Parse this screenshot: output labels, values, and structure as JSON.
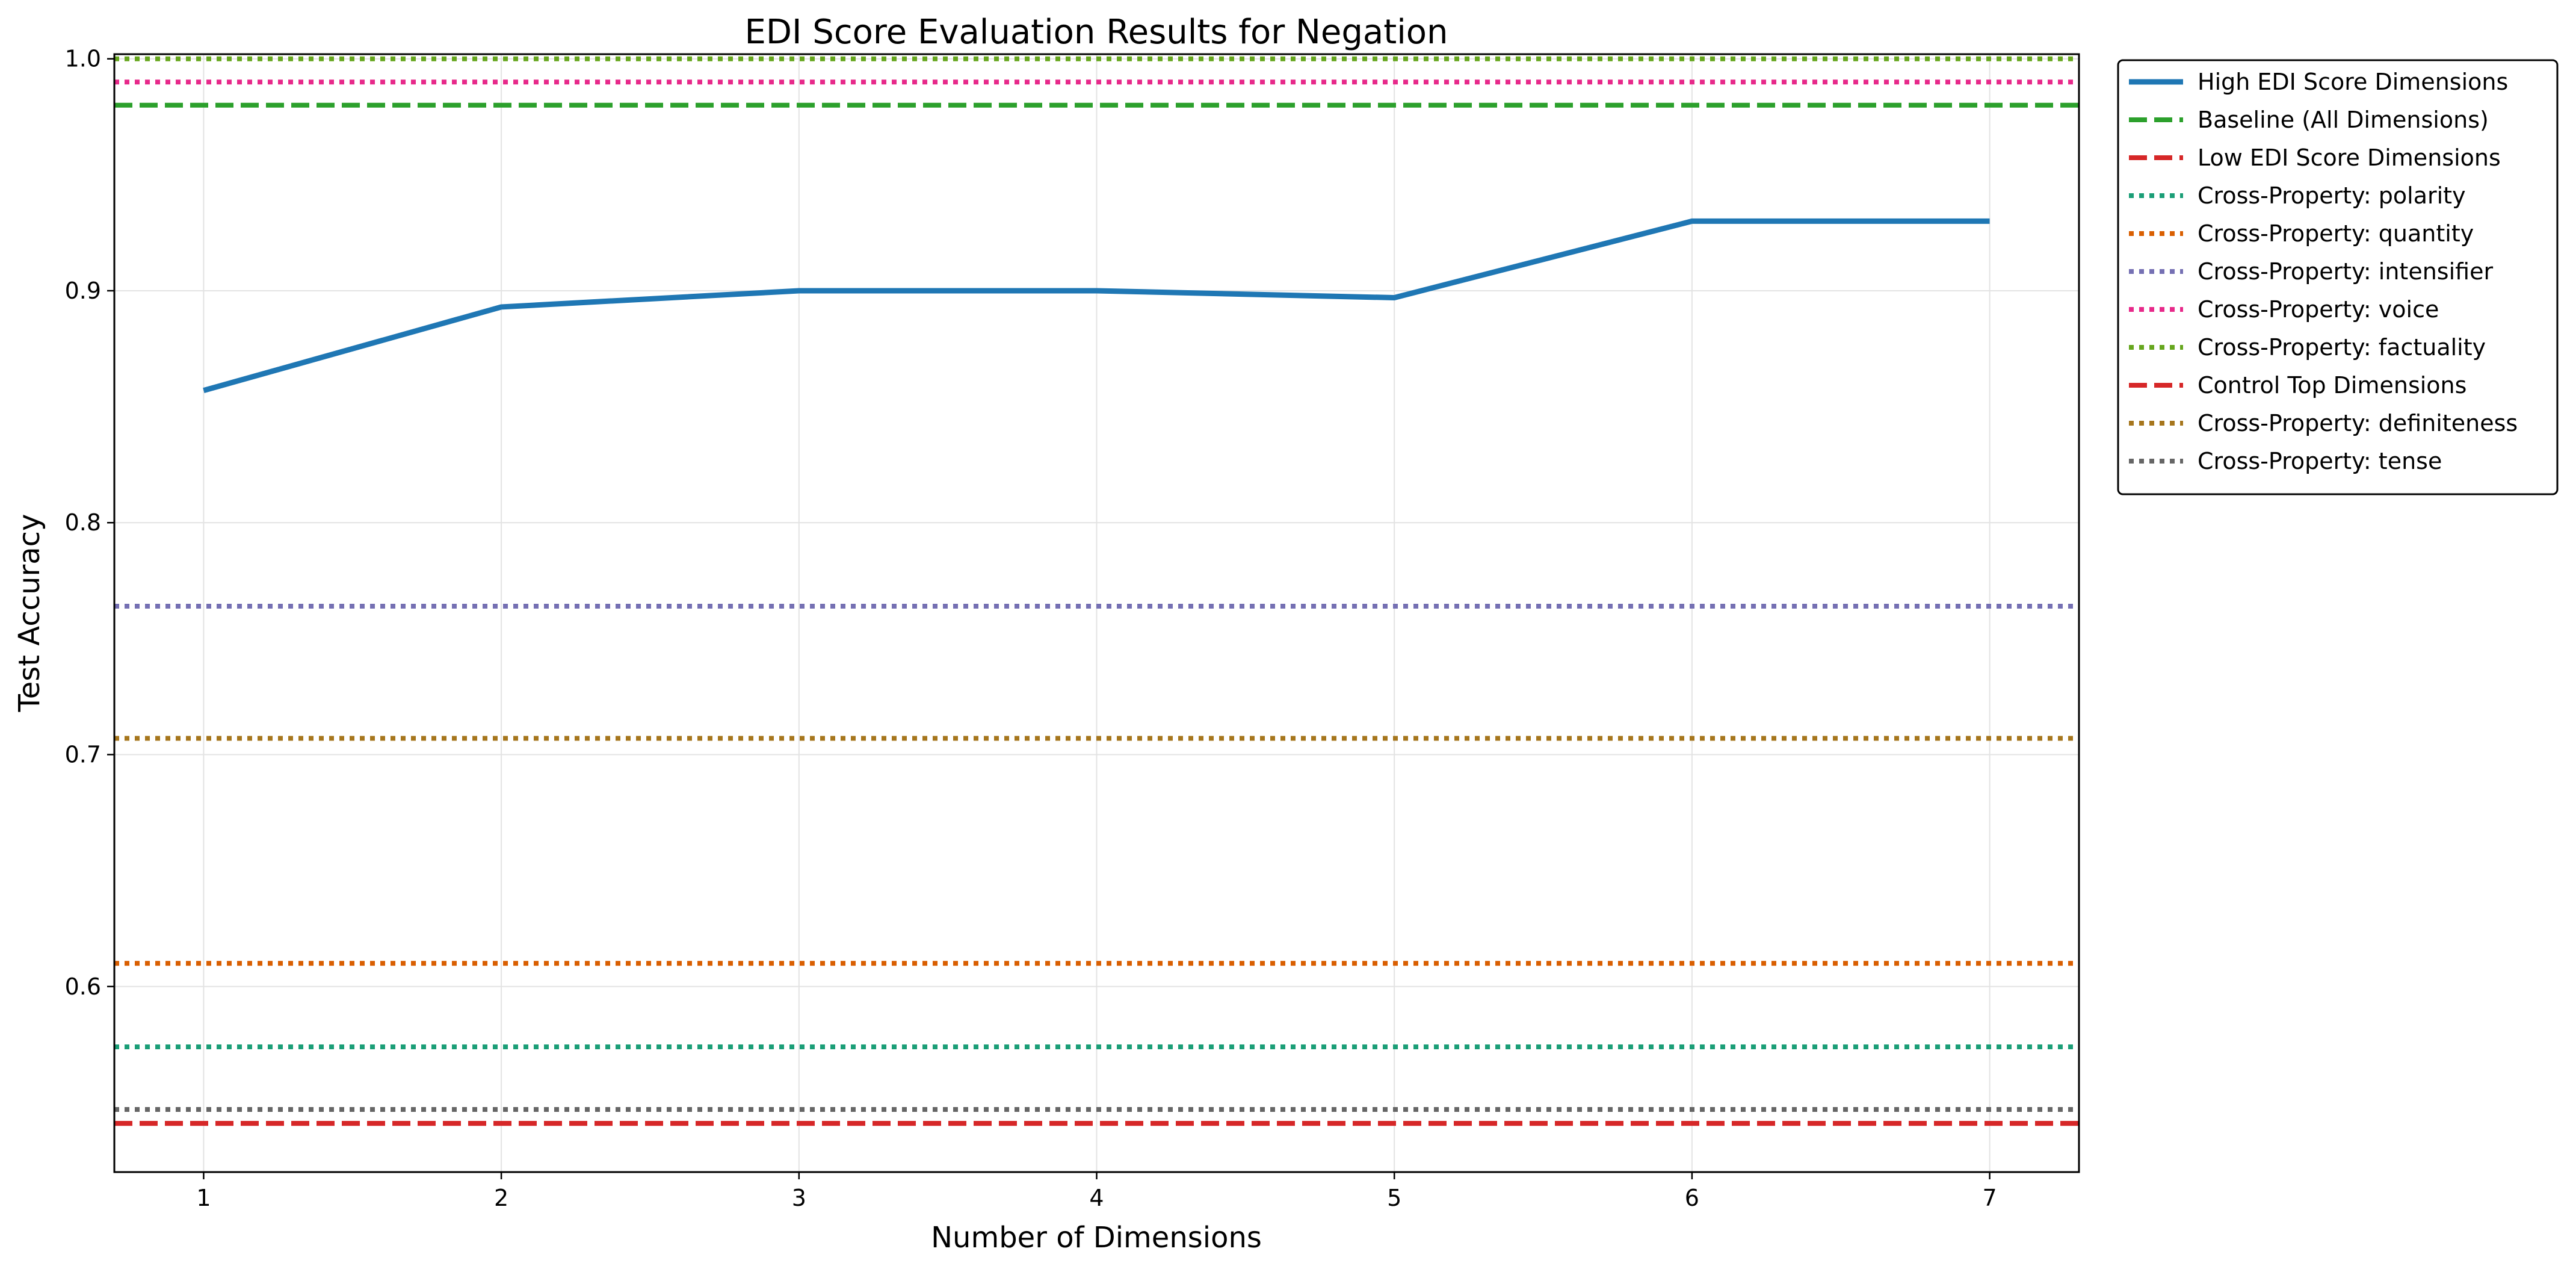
{
  "chart_data": {
    "type": "line",
    "title": "EDI Score Evaluation Results for Negation",
    "xlabel": "Number of Dimensions",
    "ylabel": "Test Accuracy",
    "xlim": [
      0.7,
      7.3
    ],
    "ylim": [
      0.52,
      1.002
    ],
    "xticks": [
      1,
      2,
      3,
      4,
      5,
      6,
      7
    ],
    "yticks": [
      0.6,
      0.7,
      0.8,
      0.9,
      1.0
    ],
    "grid": true,
    "legend_position": "outside right, top",
    "series": [
      {
        "name": "High EDI Score Dimensions",
        "style": "solid",
        "color": "#1f77b4",
        "x": [
          1,
          2,
          3,
          4,
          5,
          6,
          7
        ],
        "values": [
          0.857,
          0.893,
          0.9,
          0.9,
          0.897,
          0.93,
          0.93
        ]
      },
      {
        "name": "Baseline (All Dimensions)",
        "style": "dashed",
        "color": "#2ca02c",
        "value": 0.98
      },
      {
        "name": "Low EDI Score Dimensions",
        "style": "dashed",
        "color": "#d62728",
        "value": 0.541
      },
      {
        "name": "Cross-Property: polarity",
        "style": "dotted",
        "color": "#1b9e77",
        "value": 0.574
      },
      {
        "name": "Cross-Property: quantity",
        "style": "dotted",
        "color": "#d95f02",
        "value": 0.61
      },
      {
        "name": "Cross-Property: intensifier",
        "style": "dotted",
        "color": "#7570b3",
        "value": 0.764
      },
      {
        "name": "Cross-Property: voice",
        "style": "dotted",
        "color": "#e7298a",
        "value": 0.99
      },
      {
        "name": "Cross-Property: factuality",
        "style": "dotted",
        "color": "#66a61e",
        "value": 1.0
      },
      {
        "name": "Control Top Dimensions",
        "style": "dashed",
        "color": "#d62728",
        "value": 0.541
      },
      {
        "name": "Cross-Property: definiteness",
        "style": "dotted",
        "color": "#a6761d",
        "value": 0.707
      },
      {
        "name": "Cross-Property: tense",
        "style": "dotted",
        "color": "#666666",
        "value": 0.547
      }
    ]
  }
}
